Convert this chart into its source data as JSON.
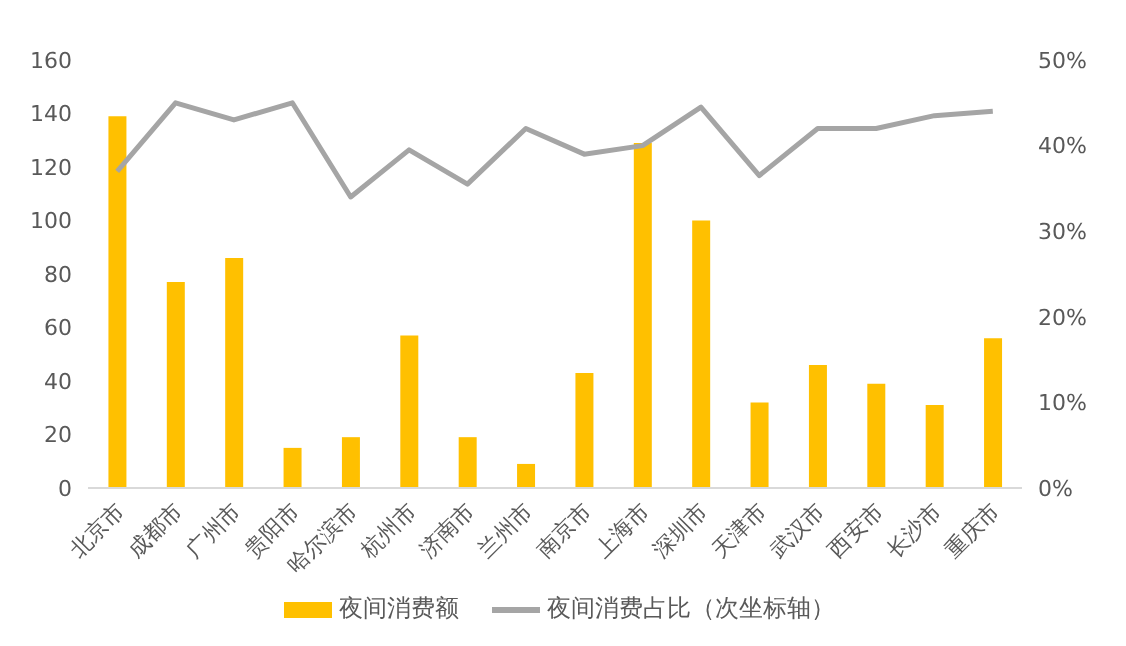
{
  "chart_data": {
    "type": "bar",
    "categories": [
      "北京市",
      "成都市",
      "广州市",
      "贵阳市",
      "哈尔滨市",
      "杭州市",
      "济南市",
      "兰州市",
      "南京市",
      "上海市",
      "深圳市",
      "天津市",
      "武汉市",
      "西安市",
      "长沙市",
      "重庆市"
    ],
    "series": [
      {
        "name": "夜间消费额",
        "color": "#ffc000",
        "values": [
          139,
          77,
          86,
          15,
          19,
          57,
          19,
          9,
          43,
          129,
          100,
          32,
          46,
          39,
          31,
          56
        ]
      },
      {
        "name": "夜间消费占比（次坐标轴）",
        "type": "line",
        "axis": "y2",
        "color": "#a5a5a5",
        "values": [
          37,
          45,
          43,
          45,
          34,
          39.5,
          35.5,
          42,
          39,
          40,
          44.5,
          36.5,
          42,
          42,
          43.5,
          44
        ]
      }
    ],
    "ylim": [
      0,
      160
    ],
    "yticks": [
      0,
      20,
      40,
      60,
      80,
      100,
      120,
      140,
      160
    ],
    "y2lim": [
      0,
      50
    ],
    "y2ticks": [
      {
        "value": 0,
        "label": "0%"
      },
      {
        "value": 10,
        "label": "10%"
      },
      {
        "value": 20,
        "label": "20%"
      },
      {
        "value": 30,
        "label": "30%"
      },
      {
        "value": 40,
        "label": "40%"
      },
      {
        "value": 50,
        "label": "50%"
      }
    ],
    "legend": "bottom",
    "marker": "none"
  }
}
